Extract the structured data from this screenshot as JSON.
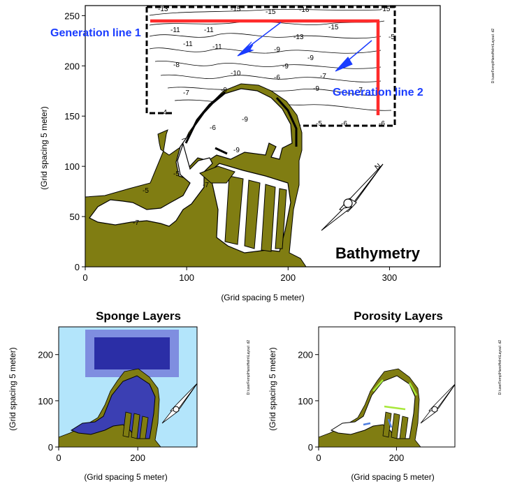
{
  "colors": {
    "land": "#807d12",
    "land_edge": "#000000",
    "water": "#ffffff",
    "generation_line": "#ff2b2b",
    "generation_label": "#1a3cff",
    "arrow": "#1a3cff",
    "sponge_outer": "#b3e5fb",
    "sponge_mid": "#7f8ee0",
    "sponge_inner": "#2b2ea6",
    "sponge_harbor": "#3b3fb3",
    "porosity_highlight_green": "#a8e83a",
    "porosity_highlight_blue": "#4f7fe0"
  },
  "file_path_label": "D:\\userFemp\\HansHelm\\Layout .d2",
  "chart_data": [
    {
      "type": "heatmap",
      "title": "Bathymetry",
      "xlabel": "",
      "ylabel": "(Grid spacing 5 meter)",
      "x_axis_label": "(Grid spacing 5 meter)",
      "xlim": [
        0,
        350
      ],
      "ylim": [
        0,
        260
      ],
      "xticks": [
        "0",
        "100",
        "200",
        "300"
      ],
      "yticks": [
        "0",
        "50",
        "100",
        "150",
        "200",
        "250"
      ],
      "annotations": [
        {
          "text": "Generation line 1",
          "line_x": [
            65,
            290
          ],
          "line_y": [
            244,
            244
          ]
        },
        {
          "text": "Generation line 2",
          "line_x": [
            290,
            290
          ],
          "line_y": [
            244,
            150
          ]
        }
      ],
      "contour_labels": [
        "-13",
        "-15",
        "-15",
        "-16",
        "-15",
        "-11",
        "-11",
        "-13",
        "-15",
        "-11",
        "-11",
        "-9",
        "-9",
        "-10",
        "-9",
        "-7",
        "-9",
        "-7",
        "-5",
        "-4",
        "-9",
        "-5",
        "-6",
        "-6",
        "-8",
        "-9",
        "-7",
        "-6",
        "-9",
        "-7",
        "-5",
        "-5",
        "-7",
        "-6"
      ],
      "grid": false,
      "compass": "N"
    },
    {
      "type": "heatmap",
      "title": "Sponge Layers",
      "ylabel": "(Grid spacing 5 meter)",
      "x_axis_label": "(Grid spacing 5 meter)",
      "xlim": [
        0,
        350
      ],
      "ylim": [
        0,
        260
      ],
      "xticks": [
        "0",
        "200"
      ],
      "yticks": [
        "0",
        "100",
        "200"
      ],
      "compass": "N"
    },
    {
      "type": "heatmap",
      "title": "Porosity Layers",
      "ylabel": "(Grid spacing 5 meter)",
      "x_axis_label": "(Grid spacing 5 meter)",
      "xlim": [
        0,
        350
      ],
      "ylim": [
        0,
        260
      ],
      "xticks": [
        "0",
        "200"
      ],
      "yticks": [
        "0",
        "100",
        "200"
      ],
      "compass": "N"
    }
  ]
}
